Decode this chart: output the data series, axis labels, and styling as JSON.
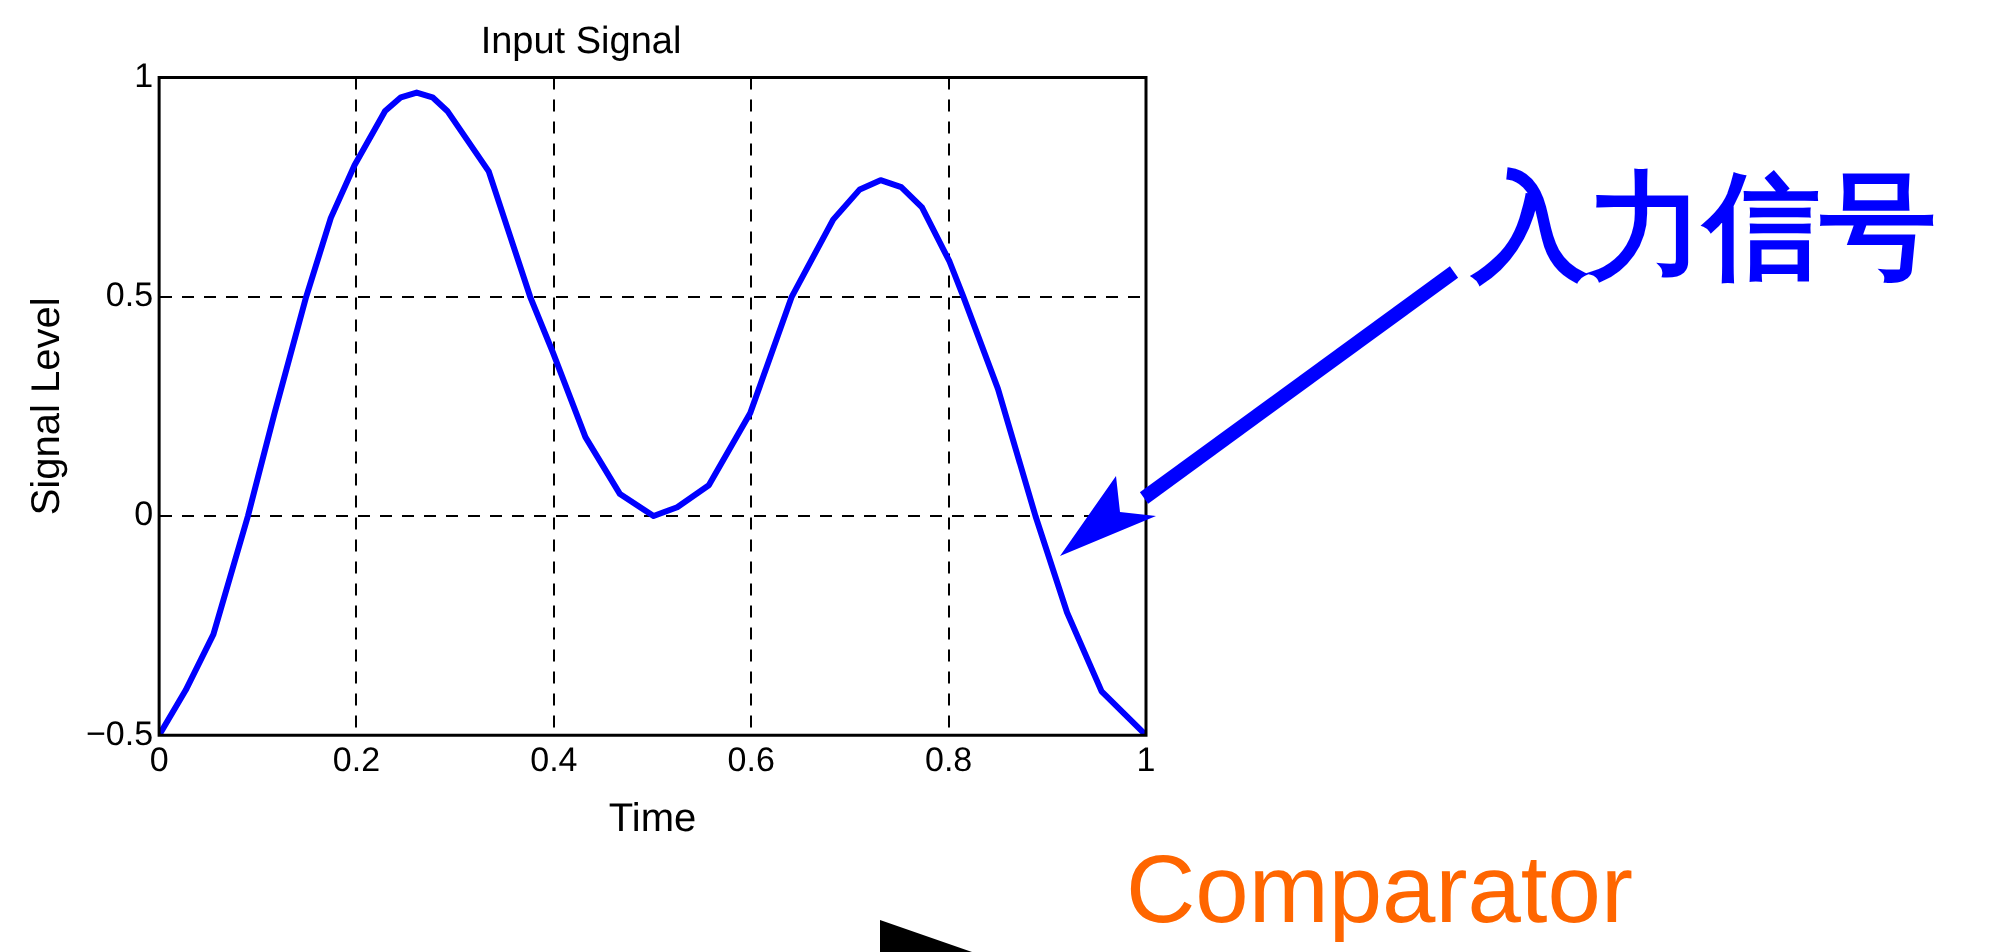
{
  "chart_data": {
    "type": "line",
    "title": "Input Signal",
    "xlabel": "Time",
    "ylabel": "Signal Level",
    "x": [
      0,
      0.027,
      0.055,
      0.09,
      0.117,
      0.149,
      0.174,
      0.198,
      0.229,
      0.245,
      0.261,
      0.277,
      0.292,
      0.334,
      0.376,
      0.399,
      0.432,
      0.467,
      0.501,
      0.525,
      0.557,
      0.599,
      0.641,
      0.683,
      0.71,
      0.731,
      0.752,
      0.773,
      0.801,
      0.815,
      0.85,
      0.888,
      0.92,
      0.955,
      1
    ],
    "series": [
      {
        "color": "#0000ff",
        "values": [
          -0.5,
          -0.397,
          -0.27,
          0,
          0.235,
          0.5,
          0.68,
          0.8,
          0.924,
          0.955,
          0.966,
          0.955,
          0.924,
          0.786,
          0.5,
          0.373,
          0.18,
          0.05,
          0,
          0.02,
          0.07,
          0.235,
          0.5,
          0.676,
          0.745,
          0.766,
          0.75,
          0.704,
          0.58,
          0.5,
          0.29,
          0,
          -0.22,
          -0.4,
          -0.5
        ]
      }
    ],
    "xlim": [
      0,
      1
    ],
    "xticks": [
      0,
      0.2,
      0.4,
      0.6,
      0.8,
      1
    ],
    "ylim": [
      -0.5,
      1
    ],
    "yticks": [
      {
        "value": -0.5,
        "label": "−0.5"
      },
      0,
      0.5,
      1
    ],
    "grid": true,
    "legend": false,
    "marker": "none",
    "line_style": "solid",
    "annotations": [
      "入力信号",
      "Comparator"
    ]
  }
}
